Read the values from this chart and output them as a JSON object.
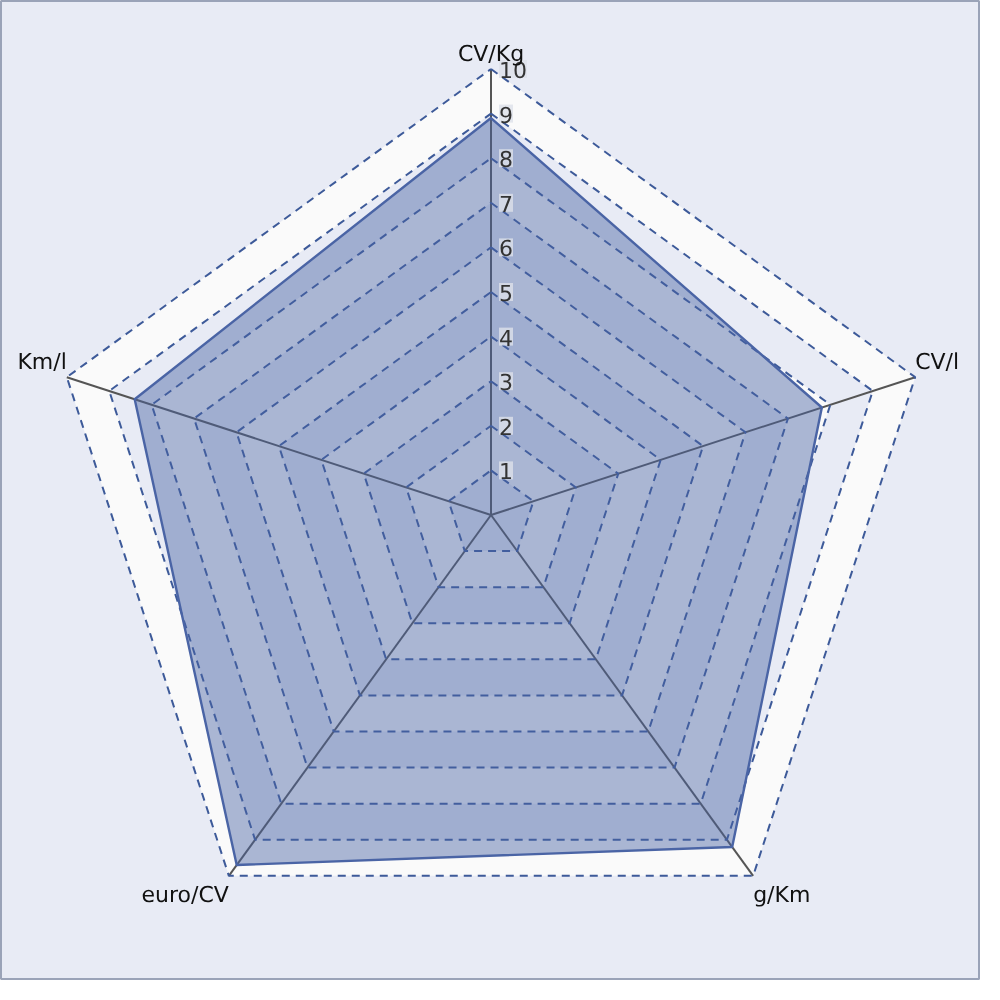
{
  "chart_data": {
    "type": "radar",
    "categories": [
      "CV/Kg",
      "CV/l",
      "g/Km",
      "euro/CV",
      "Km/l"
    ],
    "series": [
      {
        "color": "#4a64a5",
        "values": [
          8.9,
          7.8,
          9.2,
          9.7,
          8.4
        ]
      }
    ],
    "ylim": [
      0,
      10
    ],
    "yticks": [
      1,
      2,
      3,
      4,
      5,
      6,
      7,
      8,
      9,
      10
    ],
    "grid": true
  }
}
